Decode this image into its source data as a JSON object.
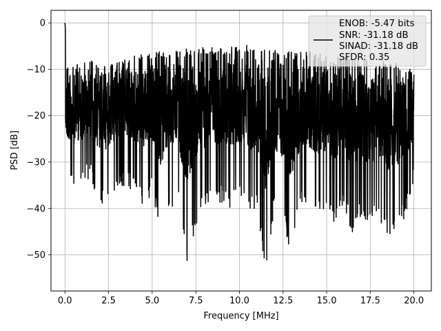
{
  "chart_data": {
    "type": "line",
    "xlabel": "Frequency [MHz]",
    "ylabel": "PSD [dB]",
    "xlim": [
      -0.8,
      21.0
    ],
    "ylim": [
      -57.8,
      2.7
    ],
    "x_ticks": [
      0.0,
      2.5,
      5.0,
      7.5,
      10.0,
      12.5,
      15.0,
      17.5,
      20.0
    ],
    "x_tick_labels": [
      "0.0",
      "2.5",
      "5.0",
      "7.5",
      "10.0",
      "12.5",
      "15.0",
      "17.5",
      "20.0"
    ],
    "y_ticks": [
      0,
      -10,
      -20,
      -30,
      -40,
      -50
    ],
    "y_tick_labels": [
      "0",
      "−10",
      "−20",
      "−30",
      "−40",
      "−50"
    ],
    "grid": true,
    "legend_position": "top-right",
    "legend_entries": [
      "ENOB: -5.47 bits",
      "SNR: -31.18 dB",
      "SINAD: -31.18 dB",
      "SFDR: 0.35"
    ],
    "series": [
      {
        "color": "#000000",
        "x": [
          0.0,
          0.02,
          0.05,
          0.1,
          0.2,
          0.3,
          0.5,
          1.0,
          1.5,
          2.0,
          2.5,
          3.0,
          3.5,
          4.0,
          4.5,
          5.0,
          5.5,
          6.0,
          6.5,
          7.0,
          7.5,
          8.0,
          8.5,
          9.0,
          9.5,
          10.0,
          10.5,
          11.0,
          11.5,
          12.0,
          12.5,
          13.0,
          13.5,
          14.0,
          14.5,
          15.0,
          15.5,
          16.0,
          16.5,
          17.0,
          17.5,
          18.0,
          18.5,
          19.0,
          19.5,
          20.0
        ],
        "upper": [
          0.0,
          -1.0,
          -8.0,
          -9.0,
          -9.0,
          -9.0,
          -9.0,
          -8.5,
          -8.0,
          -8.0,
          -8.0,
          -7.5,
          -7.0,
          -7.0,
          -6.5,
          -6.5,
          -6.0,
          -6.0,
          -6.0,
          -5.5,
          -5.0,
          -5.0,
          -5.0,
          -5.0,
          -5.0,
          -5.0,
          -4.5,
          -4.5,
          -4.0,
          -5.0,
          -5.5,
          -6.0,
          -6.0,
          -6.0,
          -6.5,
          -6.5,
          -7.0,
          -7.0,
          -7.5,
          -7.5,
          -8.0,
          -8.0,
          -8.0,
          -8.5,
          -9.0,
          -9.0
        ],
        "lower": [
          -2.0,
          -25.0,
          -33.0,
          -36.0,
          -37.0,
          -35.0,
          -36.0,
          -35.0,
          -34.0,
          -40.0,
          -38.0,
          -36.0,
          -35.0,
          -37.0,
          -40.0,
          -37.0,
          -45.5,
          -40.0,
          -39.0,
          -53.3,
          -44.0,
          -40.0,
          -38.0,
          -39.0,
          -40.0,
          -38.0,
          -42.0,
          -40.0,
          -55.0,
          -40.0,
          -44.0,
          -50.0,
          -40.0,
          -40.0,
          -41.0,
          -40.0,
          -44.0,
          -40.0,
          -46.0,
          -42.0,
          -44.0,
          -42.0,
          -46.5,
          -44.0,
          -42.0,
          -35.0
        ]
      }
    ]
  }
}
